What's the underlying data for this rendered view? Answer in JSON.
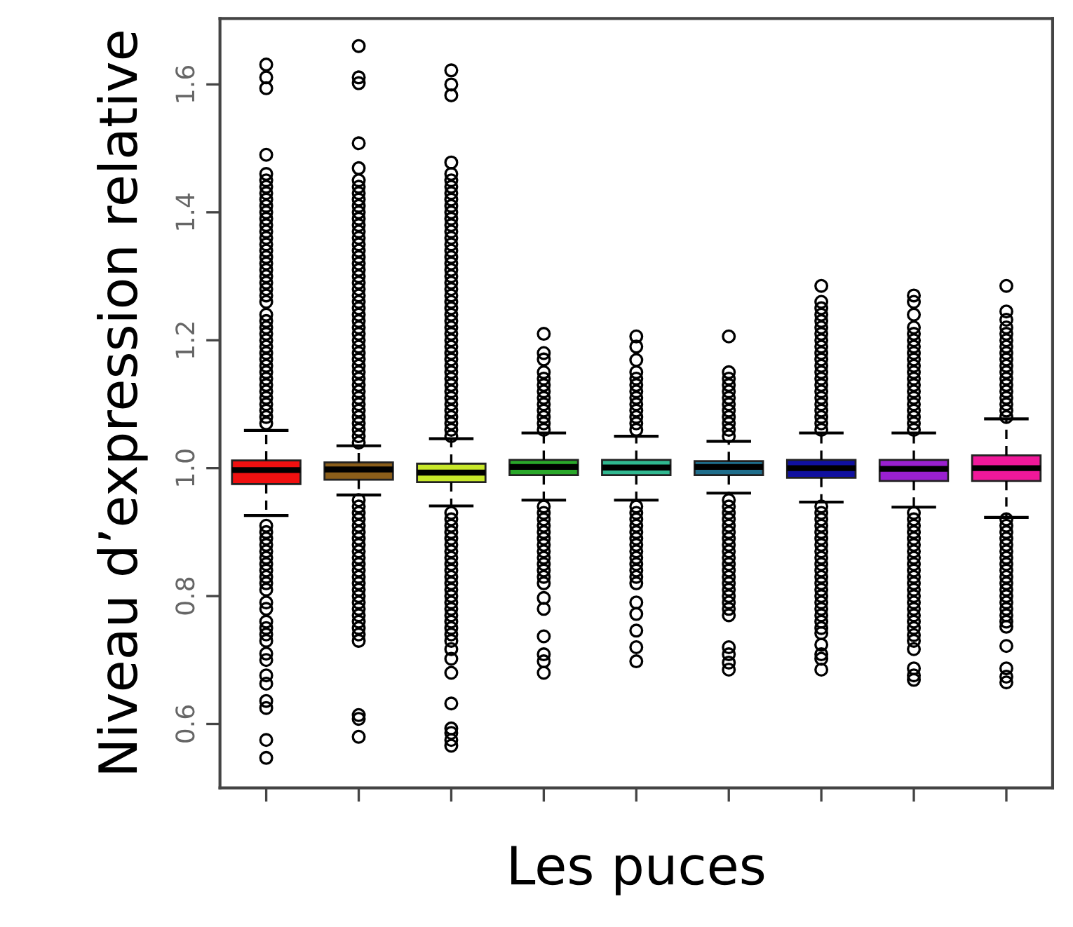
{
  "chart_data": {
    "type": "box",
    "xlabel": "Les puces",
    "ylabel": "Niveau d’expression relative",
    "categories": [
      null,
      null,
      null,
      null,
      null,
      null,
      null,
      null,
      null
    ],
    "tick_labels": "y",
    "ylim": [
      0.5,
      1.703
    ],
    "yticks": [
      0.6,
      0.8,
      {
        "value": 1.0,
        "label": "1.0"
      },
      1.2,
      1.4,
      1.6
    ],
    "grid": false,
    "marker": "circle",
    "colors": [
      "#f01010",
      "#8b5e1a",
      "#c8e82a",
      "#2aa82a",
      "#30b890",
      "#1f6e8c",
      "#1010a0",
      "#9a20d0",
      "#f0189a"
    ],
    "boxes": [
      {
        "low": 0.926,
        "q1": 0.975,
        "median": 0.997,
        "q3": 1.012,
        "high": 1.059,
        "outliers": [
          1.07,
          1.08,
          1.09,
          1.1,
          1.11,
          1.12,
          1.13,
          1.14,
          1.15,
          1.16,
          1.17,
          1.18,
          1.19,
          1.2,
          1.21,
          1.22,
          1.23,
          1.24,
          1.26,
          1.27,
          1.28,
          1.29,
          1.3,
          1.31,
          1.32,
          1.33,
          1.34,
          1.35,
          1.36,
          1.37,
          1.38,
          1.39,
          1.4,
          1.41,
          1.42,
          1.43,
          1.44,
          1.45,
          1.46,
          1.49,
          1.594,
          1.611,
          1.631,
          0.91,
          0.9,
          0.89,
          0.88,
          0.87,
          0.86,
          0.85,
          0.84,
          0.83,
          0.82,
          0.81,
          0.79,
          0.78,
          0.76,
          0.75,
          0.74,
          0.73,
          0.71,
          0.7,
          0.676,
          0.663,
          0.636,
          0.625,
          0.575,
          0.547
        ]
      },
      {
        "low": 0.958,
        "q1": 0.982,
        "median": 0.998,
        "q3": 1.009,
        "high": 1.035,
        "outliers": [
          1.04,
          1.05,
          1.06,
          1.07,
          1.08,
          1.09,
          1.1,
          1.11,
          1.12,
          1.13,
          1.14,
          1.15,
          1.16,
          1.17,
          1.18,
          1.19,
          1.2,
          1.21,
          1.22,
          1.23,
          1.24,
          1.25,
          1.26,
          1.27,
          1.28,
          1.29,
          1.3,
          1.31,
          1.32,
          1.33,
          1.34,
          1.35,
          1.36,
          1.37,
          1.38,
          1.39,
          1.4,
          1.41,
          1.42,
          1.43,
          1.44,
          1.45,
          1.469,
          1.508,
          1.602,
          1.611,
          1.66,
          0.95,
          0.94,
          0.93,
          0.92,
          0.91,
          0.9,
          0.89,
          0.88,
          0.87,
          0.86,
          0.85,
          0.84,
          0.83,
          0.82,
          0.81,
          0.8,
          0.79,
          0.78,
          0.77,
          0.76,
          0.75,
          0.74,
          0.73,
          0.614,
          0.608,
          0.58
        ]
      },
      {
        "low": 0.941,
        "q1": 0.978,
        "median": 0.993,
        "q3": 1.007,
        "high": 1.046,
        "outliers": [
          1.05,
          1.06,
          1.07,
          1.08,
          1.09,
          1.1,
          1.11,
          1.12,
          1.13,
          1.14,
          1.15,
          1.16,
          1.17,
          1.18,
          1.19,
          1.2,
          1.21,
          1.22,
          1.23,
          1.24,
          1.25,
          1.26,
          1.27,
          1.28,
          1.29,
          1.3,
          1.31,
          1.32,
          1.33,
          1.34,
          1.35,
          1.36,
          1.37,
          1.38,
          1.39,
          1.4,
          1.41,
          1.42,
          1.43,
          1.44,
          1.45,
          1.46,
          1.478,
          1.583,
          1.6,
          1.622,
          0.93,
          0.92,
          0.91,
          0.9,
          0.89,
          0.88,
          0.87,
          0.86,
          0.85,
          0.84,
          0.83,
          0.82,
          0.81,
          0.8,
          0.79,
          0.78,
          0.77,
          0.76,
          0.75,
          0.74,
          0.73,
          0.717,
          0.702,
          0.68,
          0.632,
          0.593,
          0.586,
          0.575,
          0.566
        ]
      },
      {
        "low": 0.95,
        "q1": 0.989,
        "median": 1.002,
        "q3": 1.013,
        "high": 1.055,
        "outliers": [
          1.06,
          1.07,
          1.08,
          1.09,
          1.1,
          1.11,
          1.12,
          1.13,
          1.14,
          1.15,
          1.17,
          1.18,
          1.21,
          0.94,
          0.93,
          0.92,
          0.91,
          0.9,
          0.89,
          0.88,
          0.87,
          0.86,
          0.85,
          0.84,
          0.83,
          0.82,
          0.797,
          0.78,
          0.737,
          0.709,
          0.698,
          0.68
        ]
      },
      {
        "low": 0.95,
        "q1": 0.989,
        "median": 1.001,
        "q3": 1.013,
        "high": 1.05,
        "outliers": [
          1.06,
          1.07,
          1.08,
          1.09,
          1.1,
          1.11,
          1.12,
          1.13,
          1.14,
          1.15,
          1.169,
          1.19,
          1.206,
          0.94,
          0.93,
          0.92,
          0.91,
          0.9,
          0.89,
          0.88,
          0.87,
          0.86,
          0.85,
          0.84,
          0.83,
          0.82,
          0.79,
          0.772,
          0.746,
          0.72,
          0.698
        ]
      },
      {
        "low": 0.961,
        "q1": 0.989,
        "median": 1.002,
        "q3": 1.011,
        "high": 1.042,
        "outliers": [
          1.05,
          1.06,
          1.07,
          1.08,
          1.09,
          1.1,
          1.11,
          1.12,
          1.13,
          1.14,
          1.15,
          1.206,
          0.95,
          0.94,
          0.93,
          0.92,
          0.91,
          0.9,
          0.89,
          0.88,
          0.87,
          0.86,
          0.85,
          0.84,
          0.83,
          0.82,
          0.81,
          0.8,
          0.79,
          0.78,
          0.77,
          0.72,
          0.709,
          0.696,
          0.685
        ]
      },
      {
        "low": 0.947,
        "q1": 0.985,
        "median": 1.0,
        "q3": 1.013,
        "high": 1.055,
        "outliers": [
          1.06,
          1.07,
          1.08,
          1.09,
          1.1,
          1.11,
          1.12,
          1.13,
          1.14,
          1.15,
          1.16,
          1.17,
          1.18,
          1.19,
          1.2,
          1.21,
          1.22,
          1.23,
          1.24,
          1.25,
          1.26,
          1.285,
          0.94,
          0.93,
          0.92,
          0.91,
          0.9,
          0.89,
          0.88,
          0.87,
          0.86,
          0.85,
          0.84,
          0.83,
          0.82,
          0.81,
          0.8,
          0.79,
          0.78,
          0.77,
          0.76,
          0.75,
          0.742,
          0.724,
          0.709,
          0.702,
          0.685
        ]
      },
      {
        "low": 0.939,
        "q1": 0.98,
        "median": 0.999,
        "q3": 1.013,
        "high": 1.055,
        "outliers": [
          1.06,
          1.07,
          1.08,
          1.09,
          1.1,
          1.11,
          1.12,
          1.13,
          1.14,
          1.15,
          1.16,
          1.17,
          1.18,
          1.19,
          1.2,
          1.21,
          1.22,
          1.24,
          1.26,
          1.27,
          0.93,
          0.92,
          0.91,
          0.9,
          0.89,
          0.88,
          0.87,
          0.86,
          0.85,
          0.84,
          0.83,
          0.82,
          0.81,
          0.8,
          0.79,
          0.78,
          0.77,
          0.76,
          0.75,
          0.739,
          0.73,
          0.717,
          0.687,
          0.676,
          0.669
        ]
      },
      {
        "low": 0.923,
        "q1": 0.98,
        "median": 1.0,
        "q3": 1.02,
        "high": 1.077,
        "outliers": [
          1.08,
          1.09,
          1.1,
          1.11,
          1.12,
          1.13,
          1.14,
          1.15,
          1.16,
          1.17,
          1.18,
          1.19,
          1.2,
          1.21,
          1.22,
          1.232,
          1.245,
          1.285,
          0.92,
          0.91,
          0.9,
          0.89,
          0.88,
          0.87,
          0.86,
          0.85,
          0.84,
          0.83,
          0.82,
          0.81,
          0.8,
          0.79,
          0.78,
          0.77,
          0.76,
          0.752,
          0.722,
          0.687,
          0.674,
          0.665
        ]
      }
    ]
  }
}
